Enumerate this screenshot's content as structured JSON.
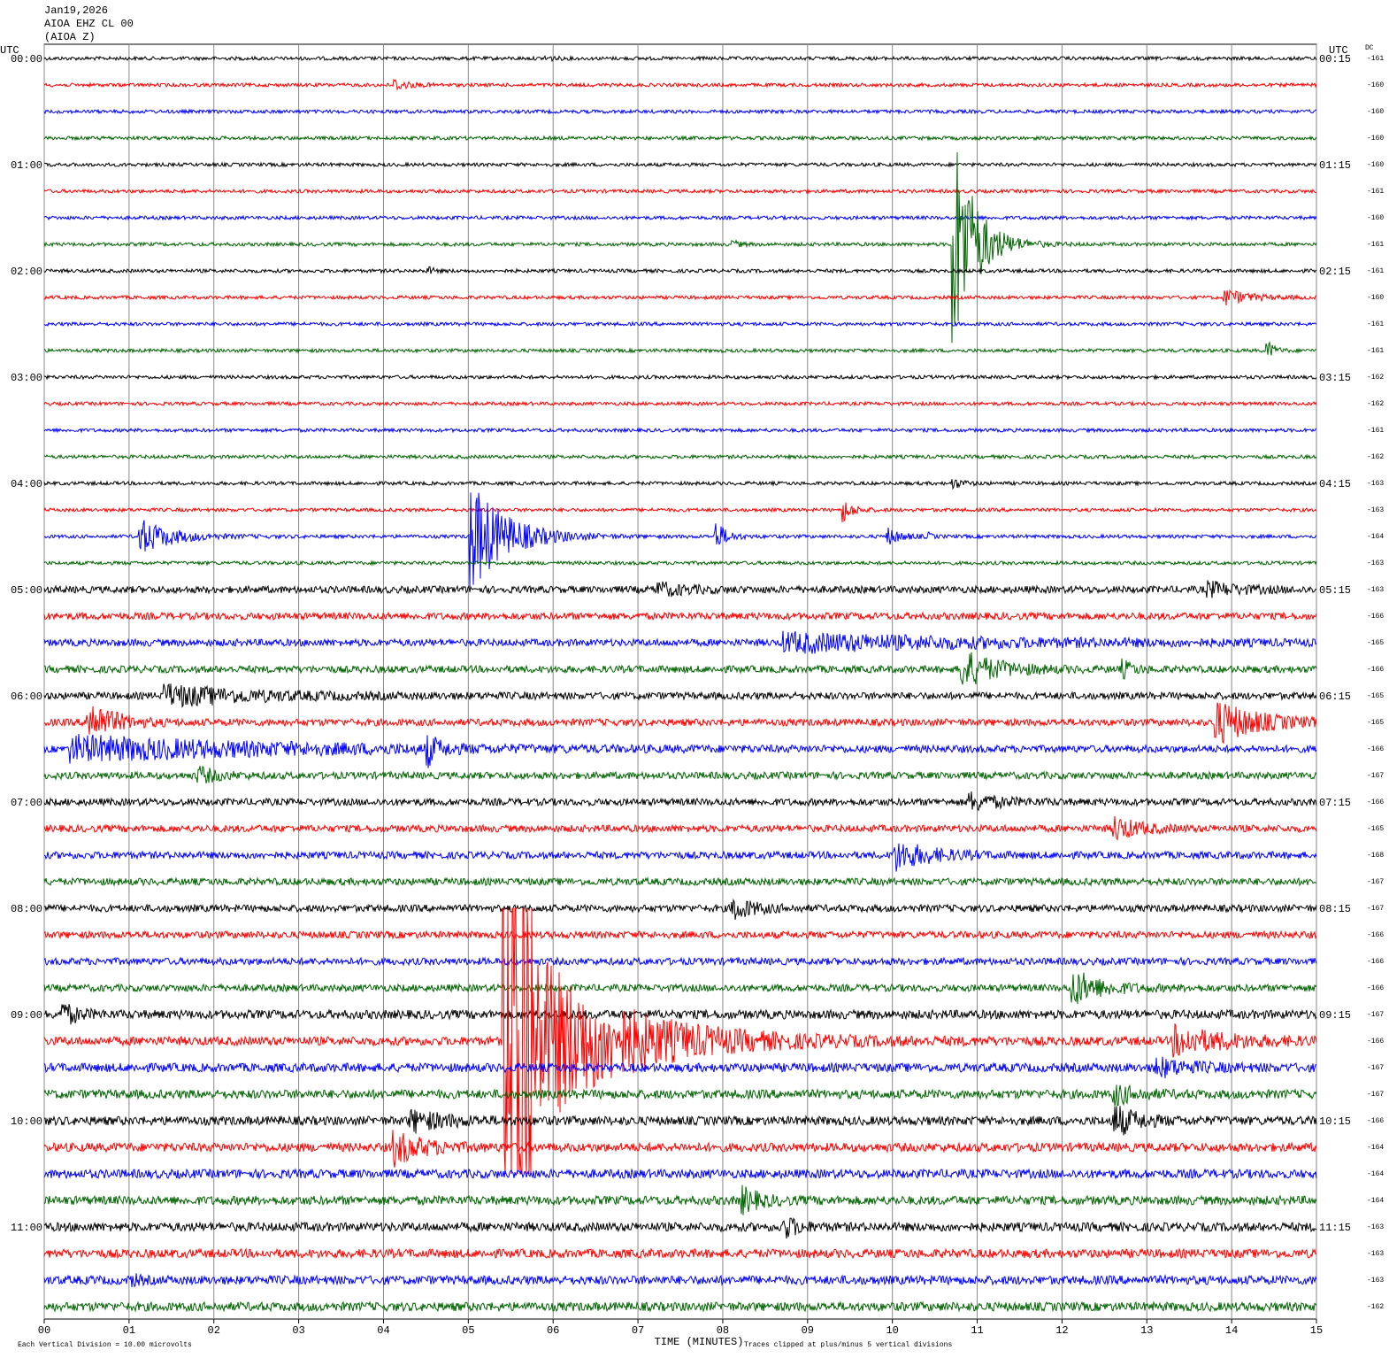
{
  "header": {
    "date": "Jan19,2026",
    "station": "AIOA EHZ CL 00",
    "channel": "(AIOA Z)"
  },
  "left_axis_title": "UTC",
  "right_axis_title": "UTC",
  "dc_title": "DC",
  "left_labels": [
    "00:00",
    "01:00",
    "02:00",
    "03:00",
    "04:00",
    "05:00",
    "06:00",
    "07:00",
    "08:00",
    "09:00",
    "10:00",
    "11:00"
  ],
  "right_labels": [
    "00:15",
    "01:15",
    "02:15",
    "03:15",
    "04:15",
    "05:15",
    "06:15",
    "07:15",
    "08:15",
    "09:15",
    "10:15",
    "11:15"
  ],
  "dc_values": [
    -161,
    -160,
    -160,
    -160,
    -160,
    -161,
    -160,
    -161,
    -161,
    -160,
    -161,
    -161,
    -162,
    -162,
    -161,
    -162,
    -163,
    -163,
    -164,
    -163,
    -163,
    -166,
    -165,
    -166,
    -165,
    -165,
    -166,
    -167,
    -166,
    -165,
    -168,
    -167,
    -167,
    -166,
    -166,
    -166,
    -167,
    -166,
    -167,
    -167,
    -166,
    -164,
    -164,
    -164,
    -163,
    -163,
    -163,
    -162
  ],
  "x_axis": {
    "ticks": [
      "00",
      "01",
      "02",
      "03",
      "04",
      "05",
      "06",
      "07",
      "08",
      "09",
      "10",
      "11",
      "12",
      "13",
      "14",
      "15"
    ],
    "label": "TIME (MINUTES)"
  },
  "footer": {
    "scale": "Each Vertical Division =   10.00 microvolts",
    "clip": "Traces clipped at plus/minus 5 vertical divisions"
  },
  "trace_colors": [
    "#000000",
    "#ff0000",
    "#0000ff",
    "#006400"
  ]
}
